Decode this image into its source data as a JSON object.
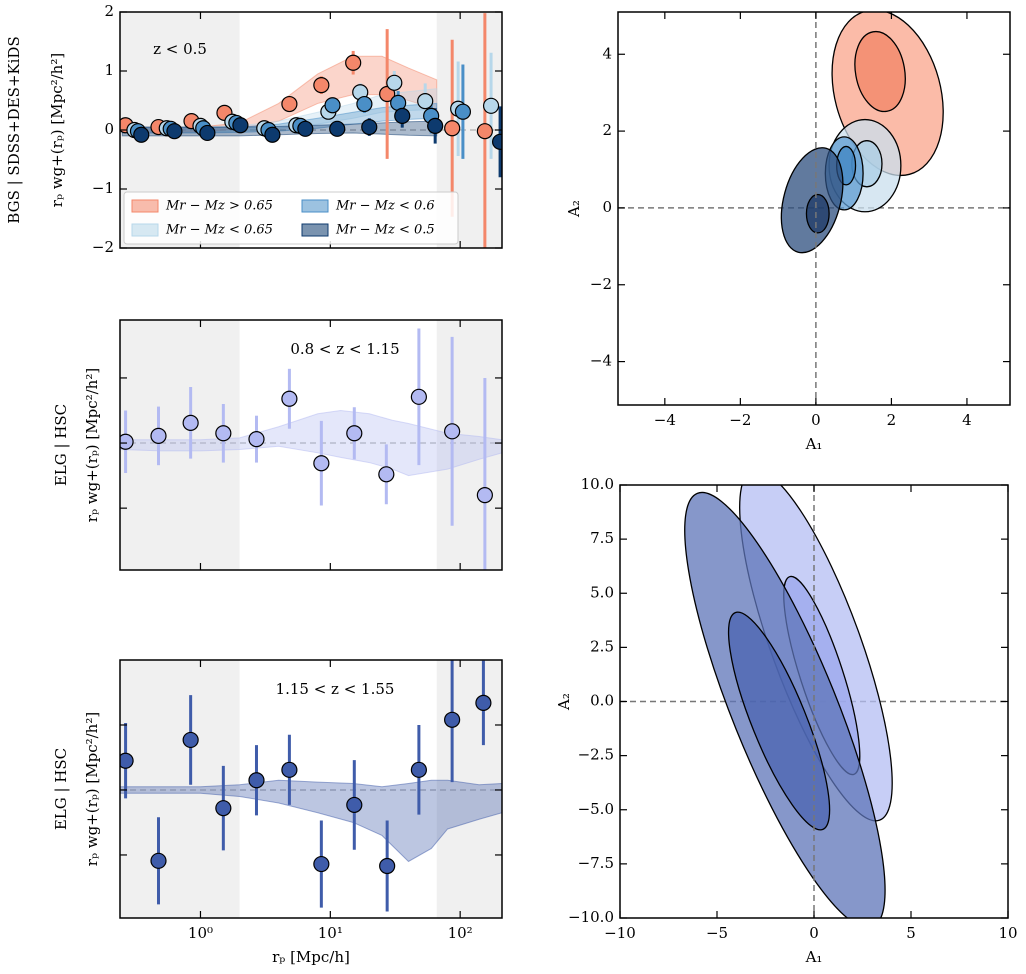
{
  "chart_data": [
    {
      "type": "errorbar",
      "group_label": "BGS | SDSS+DES+KiDS",
      "ylabel": "rₚ wg+(rₚ) [Mpc²/h²]",
      "annotation": "z < 0.5",
      "xscale": "log",
      "xlim": [
        0.24,
        210
      ],
      "xticks": [
        1,
        10,
        100
      ],
      "xtick_labels": false,
      "ylim": [
        -2,
        2
      ],
      "yticks": [
        {
          "value": -2,
          "label": "−2"
        },
        {
          "value": -1,
          "label": "−1"
        },
        0,
        1,
        2
      ],
      "ytick_labels": true,
      "shaded_regions": [
        [
          0.24,
          2
        ],
        [
          66,
          210
        ]
      ],
      "zero_line": true,
      "legend": "lower left",
      "series": [
        {
          "name": "Mr − Mz > 0.65",
          "color": "#f4876a",
          "x": [
            0.265,
            0.475,
            0.853,
            1.53,
            4.84,
            8.53,
            15.0,
            27.4,
            86.8,
            155
          ],
          "values": [
            0.08,
            0.05,
            0.15,
            0.29,
            0.44,
            0.76,
            1.14,
            0.61,
            0.03,
            -0.02
          ],
          "errors": [
            0.1,
            0.1,
            0.1,
            0.1,
            0.12,
            0.15,
            0.2,
            1.1,
            1.5,
            2.0
          ],
          "band": {
            "x": [
              0.25,
              0.5,
              1,
              2,
              4,
              8,
              15,
              25,
              40,
              66
            ],
            "lower": [
              -0.05,
              -0.05,
              -0.03,
              0.02,
              0.15,
              0.45,
              0.6,
              0.6,
              0.5,
              0.35
            ],
            "upper": [
              0.05,
              0.05,
              0.05,
              0.12,
              0.45,
              0.95,
              1.25,
              1.25,
              1.05,
              0.85
            ]
          }
        },
        {
          "name": "Mr − Mz < 0.65",
          "color": "#b7d7ea",
          "x": [
            0.31,
            0.55,
            1.0,
            1.76,
            3.1,
            5.47,
            9.66,
            17.0,
            31.1,
            53.8,
            96.5,
            173
          ],
          "values": [
            0,
            0.03,
            0.07,
            0.14,
            0.03,
            0.08,
            0.31,
            0.64,
            0.8,
            0.49,
            0.36,
            0.41
          ],
          "errors": [
            0.1,
            0.1,
            0.1,
            0.1,
            0.1,
            0.1,
            0.12,
            0.15,
            0.2,
            0.3,
            0.8,
            0.9
          ],
          "band": {
            "x": [
              0.25,
              0.5,
              1,
              2,
              4,
              8,
              15,
              25,
              40,
              66
            ],
            "lower": [
              -0.05,
              -0.05,
              -0.04,
              -0.02,
              0.03,
              0.1,
              0.2,
              0.3,
              0.33,
              0.35
            ],
            "upper": [
              0.05,
              0.05,
              0.05,
              0.07,
              0.15,
              0.3,
              0.45,
              0.6,
              0.65,
              0.7
            ]
          }
        },
        {
          "name": "Mr − Mz < 0.6",
          "color": "#4a8fc7",
          "x": [
            0.33,
            0.59,
            1.05,
            1.89,
            3.34,
            5.88,
            10.4,
            18.3,
            33.3,
            59.8,
            105
          ],
          "values": [
            -0.02,
            0.02,
            0.03,
            0.12,
            0,
            0.07,
            0.42,
            0.44,
            0.46,
            0.24,
            0.31
          ],
          "errors": [
            0.1,
            0.1,
            0.1,
            0.1,
            0.1,
            0.1,
            0.12,
            0.15,
            0.2,
            0.3,
            0.8
          ],
          "band": {
            "x": [
              0.25,
              0.5,
              1,
              2,
              4,
              8,
              15,
              25,
              40,
              66
            ],
            "lower": [
              -0.05,
              -0.05,
              -0.05,
              -0.04,
              -0.02,
              0.03,
              0.1,
              0.15,
              0.18,
              0.2
            ],
            "upper": [
              0.04,
              0.04,
              0.04,
              0.05,
              0.1,
              0.2,
              0.3,
              0.38,
              0.42,
              0.45
            ]
          }
        },
        {
          "name": "Mr − Mz < 0.5",
          "color": "#0d3a6e",
          "x": [
            0.35,
            0.63,
            1.13,
            2.03,
            3.58,
            6.42,
            11.3,
            19.95,
            35.8,
            64.2,
            203
          ],
          "values": [
            -0.08,
            -0.02,
            -0.05,
            0.08,
            -0.08,
            0.02,
            0.02,
            0.05,
            0.24,
            0.07,
            -0.2
          ],
          "errors": [
            0.1,
            0.1,
            0.1,
            0.1,
            0.1,
            0.1,
            0.12,
            0.15,
            0.2,
            0.3,
            0.6
          ],
          "band": {
            "x": [
              0.25,
              0.5,
              1,
              2,
              4,
              8,
              15,
              25,
              40,
              66
            ],
            "lower": [
              -0.1,
              -0.1,
              -0.1,
              -0.1,
              -0.08,
              -0.06,
              -0.05,
              -0.07,
              -0.09,
              -0.1
            ],
            "upper": [
              0.05,
              0.05,
              0.05,
              0.05,
              0.06,
              0.08,
              0.1,
              0.12,
              0.14,
              0.15
            ]
          }
        }
      ]
    },
    {
      "type": "errorbar",
      "group_label": "ELG | HSC",
      "ylabel": "rₚ wg+(rₚ) [Mpc²/h²]",
      "annotation": "0.8 < z < 1.15",
      "xscale": "log",
      "xlim": [
        0.24,
        210
      ],
      "xticks": [
        1,
        10,
        100
      ],
      "xtick_labels": false,
      "ylim": [
        -1.95,
        1.89
      ],
      "yticks": [
        -1,
        0,
        1
      ],
      "ytick_labels": false,
      "shaded_regions": [
        [
          0.24,
          2
        ],
        [
          66,
          210
        ]
      ],
      "zero_line": true,
      "series": [
        {
          "color": "#b3baf2",
          "x": [
            0.265,
            0.475,
            0.84,
            1.5,
            2.7,
            4.84,
            8.53,
            15.3,
            27.0,
            48.1,
            86.7,
            155
          ],
          "values": [
            0.02,
            0.11,
            0.31,
            0.15,
            0.06,
            0.68,
            -0.31,
            0.15,
            -0.48,
            0.71,
            0.18,
            -0.8
          ],
          "errors": [
            0.48,
            0.45,
            0.55,
            0.45,
            0.36,
            0.46,
            0.65,
            0.4,
            0.46,
            1.05,
            1.45,
            1.8
          ],
          "band": {
            "x": [
              0.24,
              0.5,
              1,
              2,
              4,
              8,
              12,
              20,
              30,
              40,
              80,
              140,
              210
            ],
            "lower": [
              -0.1,
              -0.12,
              -0.12,
              -0.1,
              -0.05,
              -0.15,
              -0.22,
              -0.3,
              -0.4,
              -0.5,
              -0.4,
              -0.25,
              -0.15
            ],
            "upper": [
              0.05,
              0.05,
              0.05,
              0.08,
              0.25,
              0.45,
              0.5,
              0.45,
              0.35,
              0.3,
              0.15,
              0.1,
              0.05
            ]
          }
        }
      ]
    },
    {
      "type": "errorbar",
      "group_label": "ELG | HSC",
      "ylabel": "rₚ wg+(rₚ) [Mpc²/h²]",
      "annotation": "1.15 < z < 1.55",
      "xlabel": "rₚ [Mpc/h]",
      "xscale": "log",
      "xlim": [
        0.24,
        210
      ],
      "xticks": [
        {
          "value": 1,
          "label": "10⁰"
        },
        {
          "value": 10,
          "label": "10¹"
        },
        {
          "value": 100,
          "label": "10²"
        }
      ],
      "xtick_labels": true,
      "ylim": [
        -1.97,
        2
      ],
      "yticks": [
        -1,
        0,
        1
      ],
      "ytick_labels": false,
      "shaded_regions": [
        [
          0.24,
          2
        ],
        [
          66,
          210
        ]
      ],
      "zero_line": true,
      "series": [
        {
          "color": "#3f5caa",
          "x": [
            0.265,
            0.475,
            0.84,
            1.5,
            2.7,
            4.84,
            8.53,
            15.3,
            27.4,
            48.1,
            86.7,
            151
          ],
          "values": [
            0.45,
            -1.09,
            0.77,
            -0.28,
            0.15,
            0.31,
            -1.14,
            -0.23,
            -1.17,
            0.31,
            1.08,
            1.34
          ],
          "errors": [
            0.58,
            0.67,
            0.69,
            0.65,
            0.54,
            0.54,
            0.67,
            0.69,
            0.7,
            0.69,
            0.96,
            0.65
          ],
          "band": {
            "x": [
              0.24,
              0.5,
              1,
              2,
              4,
              8,
              15,
              25,
              40,
              60,
              80,
              140,
              210
            ],
            "lower": [
              -0.05,
              -0.05,
              -0.05,
              -0.1,
              -0.2,
              -0.35,
              -0.5,
              -0.7,
              -1.1,
              -0.9,
              -0.6,
              -0.45,
              -0.35
            ],
            "upper": [
              0.05,
              0.05,
              0.05,
              0.08,
              0.15,
              0.12,
              0.1,
              0.05,
              0.1,
              0.15,
              0.15,
              0.08,
              0.1
            ]
          }
        }
      ]
    },
    {
      "type": "contour",
      "xlabel": "A₁",
      "ylabel": "A₂",
      "xlim": [
        -5.24,
        5.14
      ],
      "xticks": [
        {
          "value": -4,
          "label": "−4"
        },
        {
          "value": -2,
          "label": "−2"
        },
        0,
        2,
        4
      ],
      "ylim": [
        -5.13,
        5.1
      ],
      "yticks": [
        {
          "value": -4,
          "label": "−4"
        },
        {
          "value": -2,
          "label": "−2"
        },
        0,
        2,
        4
      ],
      "zero_line": true,
      "contours": [
        {
          "color": "#f9a48b",
          "cx": 1.9,
          "cy": 3.0,
          "rx": 1.4,
          "ry": 2.2,
          "angle": -15
        },
        {
          "color": "#f28466",
          "cx": 1.7,
          "cy": 3.55,
          "rx": 0.65,
          "ry": 1.05,
          "angle": -10
        },
        {
          "color": "#c9dfee",
          "cx": 1.3,
          "cy": 1.1,
          "rx": 0.95,
          "ry": 1.2,
          "angle": 0
        },
        {
          "color": "#a9cde6",
          "cx": 1.35,
          "cy": 1.15,
          "rx": 0.4,
          "ry": 0.6,
          "angle": 0
        },
        {
          "color": "#5e9bd0",
          "cx": 0.75,
          "cy": 0.9,
          "rx": 0.5,
          "ry": 0.95,
          "angle": 0
        },
        {
          "color": "#3f84c2",
          "cx": 0.8,
          "cy": 1.1,
          "rx": 0.25,
          "ry": 0.5,
          "angle": 0
        },
        {
          "color": "#2c4d7d",
          "cx": -0.1,
          "cy": 0.2,
          "rx": 0.75,
          "ry": 1.4,
          "angle": 15
        },
        {
          "color": "#1d3a66",
          "cx": 0.05,
          "cy": -0.15,
          "rx": 0.3,
          "ry": 0.5,
          "angle": 0
        }
      ]
    },
    {
      "type": "contour",
      "xlabel": "A₁",
      "ylabel": "A₂",
      "xlim": [
        -10,
        10
      ],
      "xticks": [
        {
          "value": -10,
          "label": "−10"
        },
        {
          "value": -5,
          "label": "−5"
        },
        0,
        5,
        10
      ],
      "ylim": [
        -10,
        10
      ],
      "yticks": [
        {
          "value": -10,
          "label": "−10.0"
        },
        {
          "value": -7.5,
          "label": "−7.5"
        },
        {
          "value": -5,
          "label": "−5.0"
        },
        {
          "value": -2.5,
          "label": "−2.5"
        },
        {
          "value": 0,
          "label": "0.0"
        },
        {
          "value": 2.5,
          "label": "2.5"
        },
        {
          "value": 5,
          "label": "5.0"
        },
        {
          "value": 7.5,
          "label": "7.5"
        },
        {
          "value": 10,
          "label": "10.0"
        }
      ],
      "zero_line": true,
      "contours": [
        {
          "color": "#b4bdf3",
          "cx": 0.1,
          "cy": 2.6,
          "rx": 2.3,
          "ry": 8.6,
          "angle": -20
        },
        {
          "color": "#9aa6ec",
          "cx": 0.4,
          "cy": 1.2,
          "rx": 1.1,
          "ry": 4.8,
          "angle": -18
        },
        {
          "color": "#5d74b8",
          "cx": -1.5,
          "cy": -0.4,
          "rx": 2.7,
          "ry": 10.8,
          "angle": -22
        },
        {
          "color": "#4a63b0",
          "cx": -1.8,
          "cy": -0.9,
          "rx": 1.4,
          "ry": 5.4,
          "angle": -22
        }
      ]
    }
  ]
}
